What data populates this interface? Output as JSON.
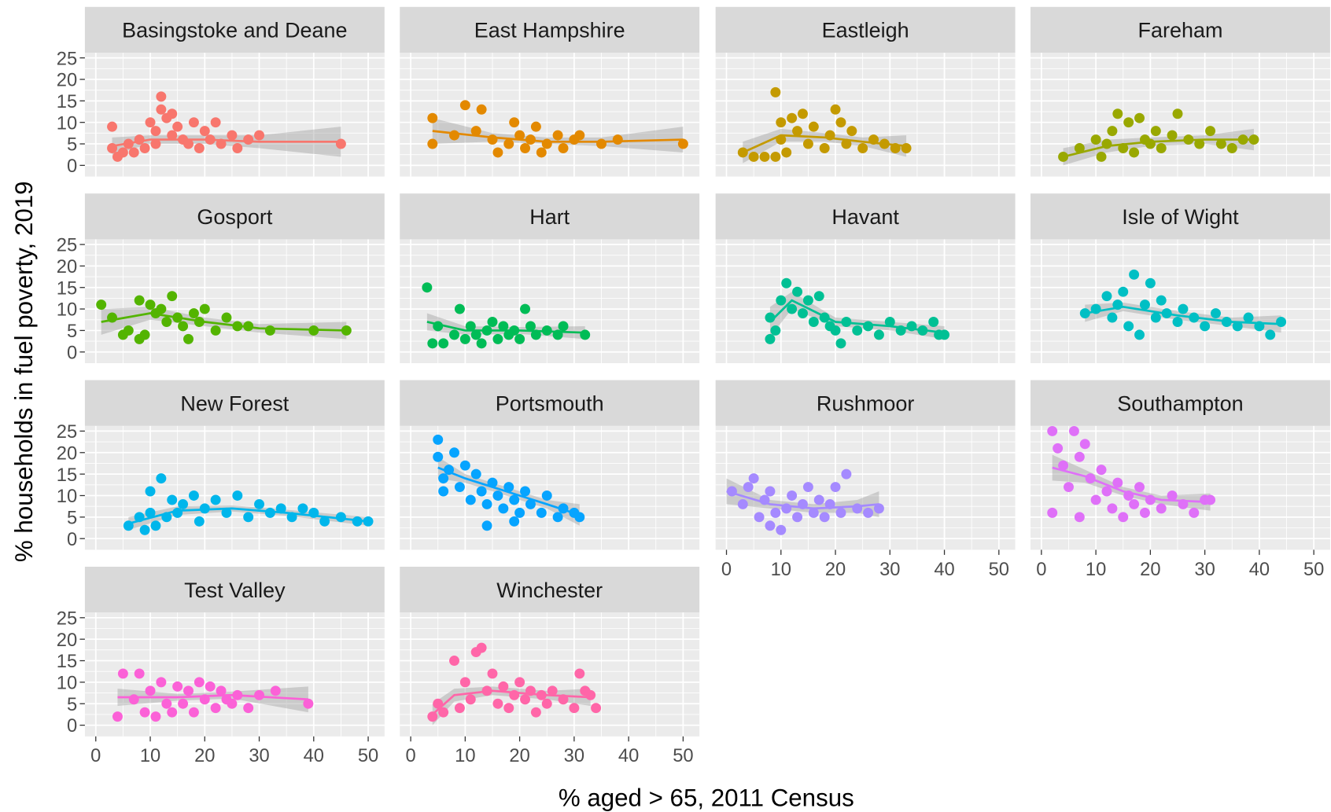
{
  "chart_data": {
    "type": "scatter",
    "x_label": "% aged > 65, 2011 Census",
    "y_label": "% households in fuel poverty, 2019",
    "xlim": [
      -2,
      53
    ],
    "ylim": [
      -2.6,
      26.2
    ],
    "xticks": [
      0,
      10,
      20,
      30,
      40,
      50
    ],
    "yticks": [
      0,
      5,
      10,
      15,
      20,
      25
    ],
    "grid": true,
    "facets": [
      {
        "title": "Basingstoke and Deane",
        "color": "#F8766D",
        "x": [
          3,
          3,
          4,
          5,
          6,
          7,
          8,
          9,
          10,
          11,
          11,
          12,
          12,
          13,
          14,
          14,
          15,
          16,
          17,
          18,
          19,
          20,
          21,
          22,
          23,
          25,
          26,
          28,
          30,
          45
        ],
        "y": [
          9,
          4,
          2,
          3,
          5,
          3,
          6,
          4,
          10,
          8,
          5,
          13,
          16,
          11,
          7,
          12,
          9,
          6,
          5,
          10,
          4,
          8,
          6,
          10,
          5,
          7,
          4,
          6,
          7,
          5
        ],
        "trend_x": [
          3,
          10,
          20,
          30,
          45
        ],
        "trend_y": [
          4.5,
          6,
          6,
          5.5,
          5.5
        ],
        "trend_lower": [
          2.5,
          5,
          5,
          4,
          2
        ],
        "trend_upper": [
          6.5,
          7,
          7,
          7,
          9
        ]
      },
      {
        "title": "East Hampshire",
        "color": "#E38900",
        "x": [
          4,
          4,
          8,
          10,
          12,
          13,
          15,
          16,
          18,
          19,
          20,
          21,
          22,
          23,
          24,
          25,
          27,
          28,
          30,
          31,
          35,
          38,
          50
        ],
        "y": [
          5,
          11,
          7,
          14,
          8,
          13,
          6,
          3,
          5,
          10,
          7,
          4,
          6,
          9,
          3,
          5,
          7,
          4,
          6,
          7,
          5,
          6,
          5
        ],
        "trend_x": [
          4,
          15,
          25,
          35,
          50
        ],
        "trend_y": [
          8,
          6.5,
          5.5,
          5.5,
          6
        ],
        "trend_lower": [
          5,
          5.5,
          5,
          4.5,
          3
        ],
        "trend_upper": [
          11,
          7.5,
          6.5,
          6.5,
          9
        ]
      },
      {
        "title": "Eastleigh",
        "color": "#C49A00",
        "x": [
          3,
          5,
          7,
          9,
          9,
          10,
          10,
          11,
          12,
          13,
          14,
          15,
          16,
          18,
          19,
          20,
          21,
          22,
          23,
          25,
          27,
          29,
          31,
          33
        ],
        "y": [
          3,
          2,
          2,
          17,
          2,
          6,
          10,
          3,
          11,
          8,
          12,
          5,
          9,
          4,
          7,
          13,
          10,
          5,
          8,
          4,
          6,
          5,
          4,
          4
        ],
        "trend_x": [
          3,
          10,
          18,
          25,
          33
        ],
        "trend_y": [
          3,
          7,
          6.5,
          5.5,
          4.5
        ],
        "trend_lower": [
          0.5,
          5.5,
          5.5,
          4.5,
          2
        ],
        "trend_upper": [
          5.5,
          8.5,
          7.5,
          6.5,
          7
        ]
      },
      {
        "title": "Fareham",
        "color": "#99A800",
        "x": [
          4,
          7,
          10,
          11,
          12,
          13,
          14,
          15,
          16,
          17,
          18,
          19,
          20,
          21,
          22,
          24,
          25,
          27,
          29,
          31,
          33,
          35,
          37,
          39
        ],
        "y": [
          2,
          4,
          6,
          2,
          5,
          8,
          12,
          4,
          10,
          3,
          11,
          6,
          5,
          8,
          4,
          7,
          12,
          6,
          5,
          8,
          5,
          4,
          6,
          6
        ],
        "trend_x": [
          4,
          12,
          20,
          30,
          39
        ],
        "trend_y": [
          2,
          4.5,
          5.5,
          6,
          6
        ],
        "trend_lower": [
          0,
          3,
          4.5,
          5,
          3.5
        ],
        "trend_upper": [
          4,
          6,
          6.5,
          7,
          8.5
        ]
      },
      {
        "title": "Gosport",
        "color": "#53B400",
        "x": [
          1,
          3,
          5,
          6,
          8,
          8,
          9,
          10,
          11,
          12,
          13,
          14,
          15,
          16,
          17,
          18,
          19,
          20,
          22,
          24,
          26,
          28,
          32,
          40,
          46
        ],
        "y": [
          11,
          8,
          4,
          5,
          3,
          12,
          4,
          11,
          9,
          10,
          7,
          13,
          8,
          6,
          3,
          9,
          7,
          10,
          5,
          8,
          6,
          6,
          5,
          5,
          5
        ],
        "trend_x": [
          1,
          10,
          20,
          30,
          46
        ],
        "trend_y": [
          7,
          9,
          7,
          5.5,
          5
        ],
        "trend_lower": [
          4,
          7.5,
          6,
          4.5,
          3
        ],
        "trend_upper": [
          10,
          10.5,
          8,
          6.5,
          7
        ]
      },
      {
        "title": "Hart",
        "color": "#00BC56",
        "x": [
          3,
          4,
          5,
          6,
          8,
          9,
          10,
          11,
          12,
          13,
          14,
          15,
          16,
          17,
          18,
          19,
          20,
          21,
          22,
          23,
          25,
          27,
          28,
          32
        ],
        "y": [
          15,
          2,
          6,
          2,
          4,
          10,
          3,
          6,
          4,
          2,
          5,
          7,
          3,
          6,
          4,
          5,
          3,
          10,
          6,
          4,
          5,
          4,
          6,
          4
        ],
        "trend_x": [
          3,
          10,
          20,
          32
        ],
        "trend_y": [
          7,
          5,
          5,
          4.5
        ],
        "trend_lower": [
          5,
          4,
          4.2,
          3
        ],
        "trend_upper": [
          9,
          6,
          5.8,
          6
        ]
      },
      {
        "title": "Havant",
        "color": "#00C094",
        "x": [
          8,
          8,
          9,
          10,
          11,
          12,
          13,
          14,
          15,
          16,
          17,
          18,
          19,
          20,
          21,
          22,
          24,
          26,
          28,
          30,
          32,
          34,
          36,
          38,
          39,
          40
        ],
        "y": [
          3,
          8,
          5,
          12,
          16,
          10,
          14,
          9,
          12,
          7,
          13,
          8,
          6,
          5,
          2,
          7,
          5,
          6,
          4,
          7,
          5,
          6,
          5,
          7,
          4,
          4
        ],
        "trend_x": [
          8,
          12,
          20,
          30,
          40
        ],
        "trend_y": [
          7,
          12,
          7,
          6,
          4.5
        ],
        "trend_lower": [
          3.5,
          10,
          6,
          5,
          3
        ],
        "trend_upper": [
          10.5,
          14,
          8,
          7,
          6
        ]
      },
      {
        "title": "Isle of Wight",
        "color": "#00BFC4",
        "x": [
          8,
          10,
          12,
          13,
          14,
          15,
          16,
          17,
          18,
          19,
          20,
          21,
          22,
          23,
          25,
          26,
          28,
          30,
          32,
          34,
          36,
          38,
          40,
          42,
          44
        ],
        "y": [
          9,
          10,
          13,
          8,
          11,
          14,
          6,
          18,
          4,
          11,
          16,
          8,
          12,
          9,
          7,
          10,
          8,
          6,
          9,
          7,
          6,
          8,
          6,
          4,
          7
        ],
        "trend_x": [
          8,
          15,
          25,
          35,
          44
        ],
        "trend_y": [
          9,
          10.5,
          8.5,
          7,
          6.5
        ],
        "trend_lower": [
          7,
          9.5,
          7.5,
          6,
          4.5
        ],
        "trend_upper": [
          11,
          11.5,
          9.5,
          8,
          8.5
        ]
      },
      {
        "title": "New Forest",
        "color": "#00B6EB",
        "x": [
          6,
          8,
          9,
          10,
          10,
          11,
          12,
          13,
          14,
          15,
          16,
          18,
          19,
          20,
          22,
          24,
          26,
          28,
          30,
          32,
          34,
          36,
          38,
          40,
          42,
          45,
          48,
          50
        ],
        "y": [
          3,
          5,
          2,
          6,
          11,
          3,
          14,
          5,
          9,
          6,
          8,
          10,
          4,
          7,
          9,
          6,
          10,
          5,
          8,
          6,
          7,
          5,
          7,
          6,
          4,
          5,
          4,
          4
        ],
        "trend_x": [
          6,
          15,
          25,
          35,
          50
        ],
        "trend_y": [
          3.5,
          6.5,
          7,
          6,
          4
        ],
        "trend_lower": [
          2,
          5.5,
          6.3,
          5.3,
          3
        ],
        "trend_upper": [
          5,
          7.5,
          7.7,
          6.7,
          5
        ]
      },
      {
        "title": "Portsmouth",
        "color": "#06A4FF",
        "x": [
          5,
          5,
          6,
          6,
          7,
          8,
          9,
          10,
          11,
          12,
          13,
          14,
          15,
          16,
          17,
          18,
          19,
          20,
          21,
          22,
          24,
          25,
          27,
          28,
          30,
          31,
          14,
          19
        ],
        "y": [
          23,
          19,
          14,
          11,
          16,
          20,
          12,
          17,
          9,
          15,
          11,
          8,
          13,
          10,
          7,
          12,
          9,
          6,
          11,
          8,
          6,
          10,
          5,
          7,
          6,
          5,
          3,
          4
        ],
        "trend_x": [
          5,
          10,
          15,
          20,
          25,
          31
        ],
        "trend_y": [
          16.5,
          14,
          12,
          10,
          8,
          5.5
        ],
        "trend_lower": [
          14,
          13,
          11,
          9,
          7,
          3
        ],
        "trend_upper": [
          19,
          15,
          13,
          11,
          9,
          8
        ]
      },
      {
        "title": "Rushmoor",
        "color": "#A58AFF",
        "x": [
          1,
          3,
          4,
          5,
          6,
          7,
          8,
          8,
          9,
          10,
          11,
          12,
          13,
          14,
          15,
          16,
          17,
          18,
          19,
          20,
          21,
          22,
          24,
          26,
          28
        ],
        "y": [
          11,
          8,
          12,
          14,
          5,
          9,
          3,
          11,
          6,
          2,
          7,
          10,
          5,
          8,
          12,
          6,
          9,
          5,
          8,
          12,
          6,
          15,
          7,
          6,
          7
        ],
        "trend_x": [
          0,
          8,
          16,
          24,
          28
        ],
        "trend_y": [
          11,
          8,
          7,
          7.5,
          8
        ],
        "trend_lower": [
          8,
          7,
          6,
          6,
          5
        ],
        "trend_upper": [
          14,
          9,
          8,
          9,
          11
        ]
      },
      {
        "title": "Southampton",
        "color": "#DF70F8",
        "x": [
          2,
          2,
          3,
          4,
          5,
          6,
          7,
          7,
          8,
          9,
          10,
          11,
          12,
          13,
          14,
          15,
          16,
          17,
          18,
          19,
          20,
          22,
          24,
          26,
          28,
          30,
          31
        ],
        "y": [
          25,
          6,
          21,
          17,
          12,
          25,
          19,
          5,
          22,
          14,
          9,
          16,
          11,
          7,
          13,
          5,
          10,
          8,
          12,
          6,
          9,
          7,
          10,
          8,
          6,
          9,
          9
        ],
        "trend_x": [
          2,
          8,
          15,
          22,
          31
        ],
        "trend_y": [
          16.5,
          14.5,
          11,
          9,
          8.5
        ],
        "trend_lower": [
          13.5,
          13,
          10,
          8,
          6.5
        ],
        "trend_upper": [
          19.5,
          16,
          12,
          10,
          10.5
        ]
      },
      {
        "title": "Test Valley",
        "color": "#FB61D7",
        "x": [
          4,
          5,
          7,
          8,
          9,
          10,
          11,
          12,
          13,
          14,
          15,
          16,
          17,
          18,
          19,
          20,
          21,
          22,
          23,
          24,
          25,
          26,
          28,
          30,
          33,
          39
        ],
        "y": [
          2,
          12,
          6,
          12,
          3,
          8,
          2,
          10,
          5,
          3,
          9,
          5,
          8,
          3,
          10,
          6,
          9,
          4,
          8,
          6,
          5,
          7,
          4,
          7,
          8,
          5
        ],
        "trend_x": [
          4,
          15,
          25,
          39
        ],
        "trend_y": [
          6.5,
          6.5,
          7,
          6
        ],
        "trend_lower": [
          4.5,
          5.7,
          6.2,
          3
        ],
        "trend_upper": [
          8.5,
          7.3,
          7.8,
          9
        ]
      },
      {
        "title": "Winchester",
        "color": "#FF66A8",
        "x": [
          4,
          5,
          6,
          8,
          9,
          10,
          11,
          12,
          13,
          14,
          15,
          16,
          17,
          18,
          19,
          20,
          21,
          22,
          23,
          24,
          25,
          26,
          28,
          30,
          31,
          32,
          33,
          34
        ],
        "y": [
          2,
          5,
          3,
          15,
          4,
          10,
          6,
          17,
          18,
          8,
          12,
          5,
          9,
          4,
          7,
          10,
          6,
          8,
          3,
          7,
          5,
          8,
          6,
          4,
          12,
          8,
          7,
          4
        ],
        "trend_x": [
          4,
          8,
          15,
          25,
          33
        ],
        "trend_y": [
          2.5,
          7,
          8,
          7,
          6.5
        ],
        "trend_lower": [
          0,
          5.5,
          7,
          6,
          4.5
        ],
        "trend_upper": [
          5,
          8.5,
          9,
          8,
          8.5
        ]
      }
    ]
  }
}
